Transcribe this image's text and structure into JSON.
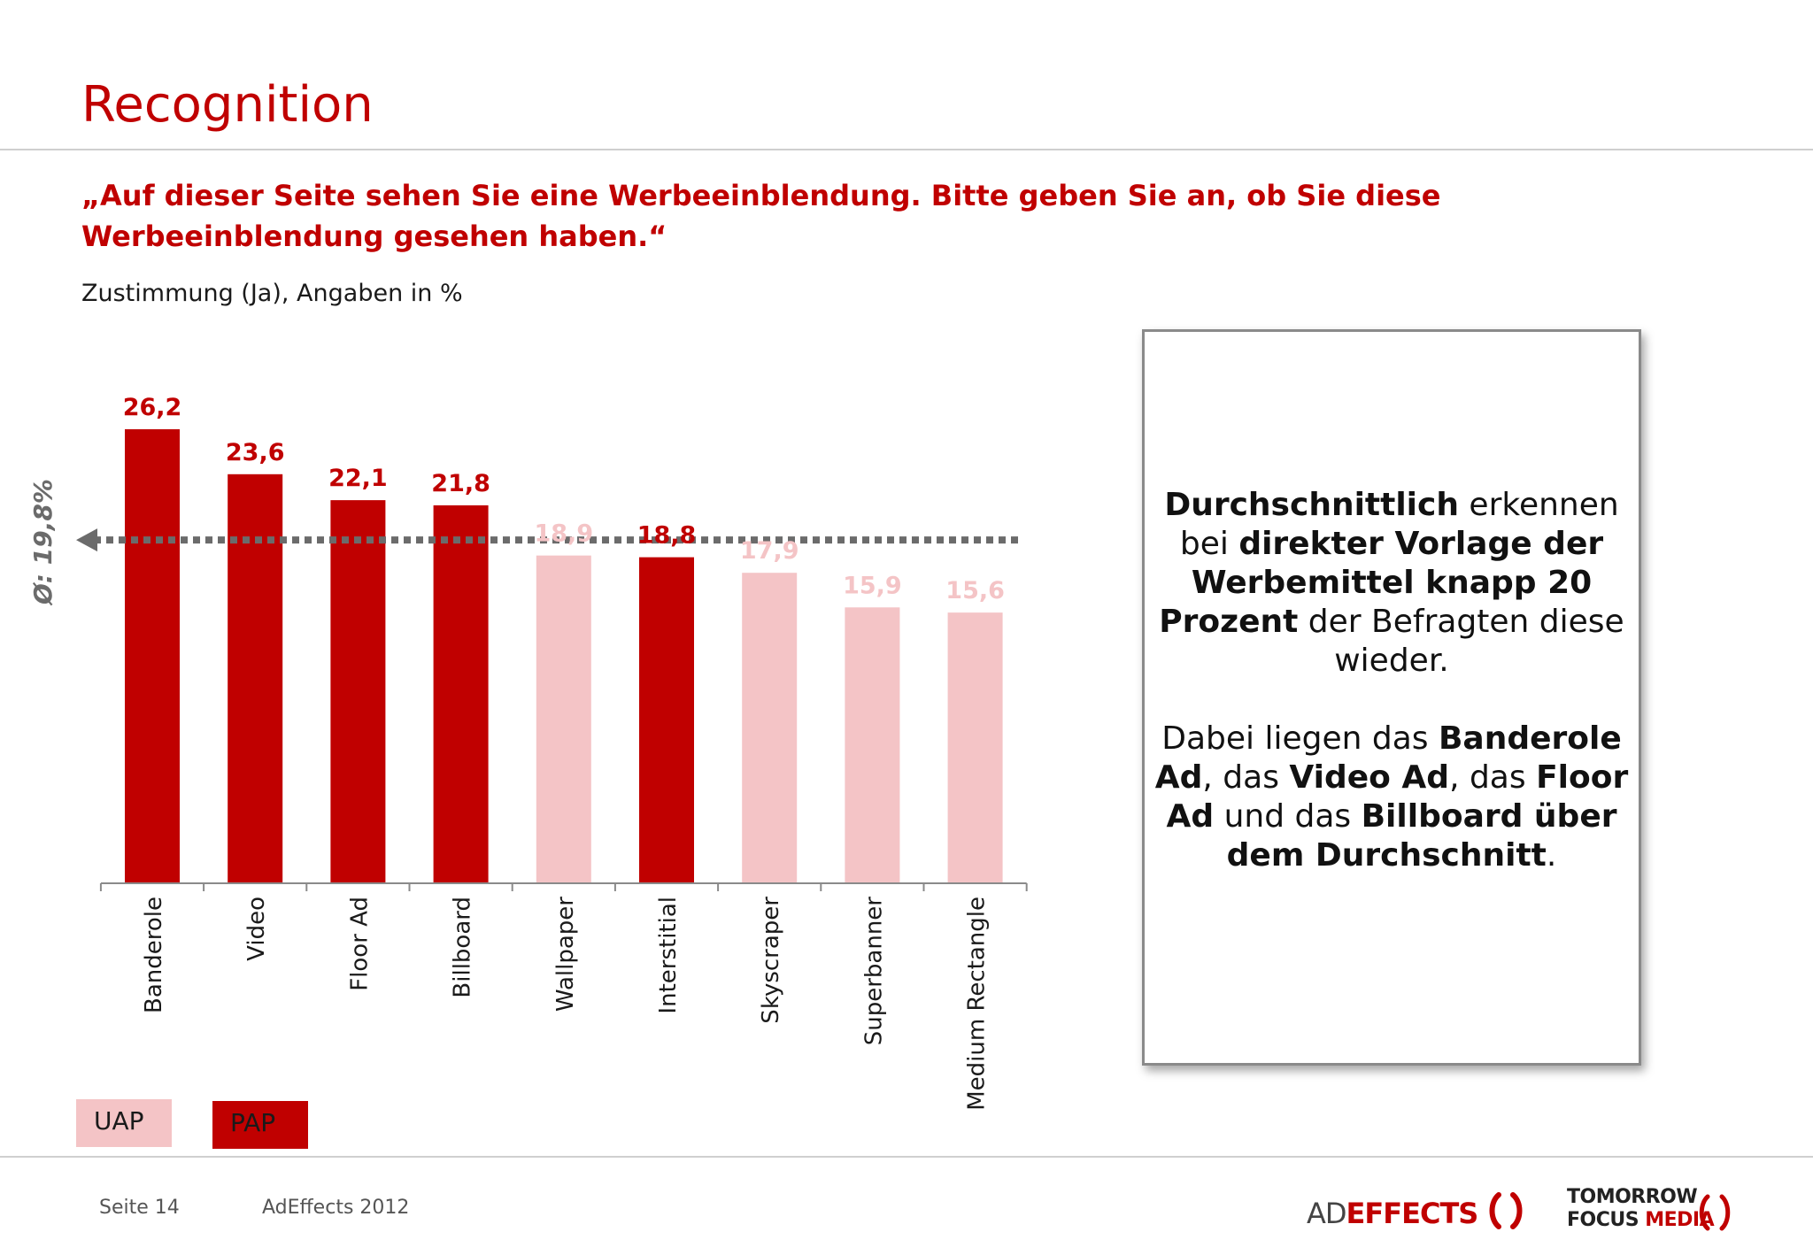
{
  "title": "Recognition",
  "question": "„Auf dieser Seite sehen Sie eine Werbeeinblendung. Bitte geben Sie an, ob Sie diese Werbeeinblendung gesehen haben.“",
  "subtitle": "Zustimmung (Ja), Angaben in %",
  "colors": {
    "accent": "#c00000",
    "uap": "#f4c4c6",
    "pap": "#c00000",
    "average_line": "#6b6b6b"
  },
  "chart_data": {
    "type": "bar",
    "categories": [
      "Banderole",
      "Video",
      "Floor Ad",
      "Billboard",
      "Wallpaper",
      "Interstitial",
      "Skyscraper",
      "Superbanner",
      "Medium Rectangle"
    ],
    "values": [
      26.2,
      23.6,
      22.1,
      21.8,
      18.9,
      18.8,
      17.9,
      15.9,
      15.6
    ],
    "value_labels": [
      "26,2",
      "23,6",
      "22,1",
      "21,8",
      "18,9",
      "18,8",
      "17,9",
      "15,9",
      "15,6"
    ],
    "groups": [
      "PAP",
      "PAP",
      "PAP",
      "PAP",
      "UAP",
      "PAP",
      "UAP",
      "UAP",
      "UAP"
    ],
    "average": 19.8,
    "average_label": "Ø: 19,8%",
    "ylim": [
      0,
      26.2
    ],
    "grid": false,
    "legend": [
      {
        "name": "UAP",
        "color": "#f4c4c6"
      },
      {
        "name": "PAP",
        "color": "#c00000"
      }
    ],
    "legend_position": "bottom-left"
  },
  "callout": {
    "p1": [
      {
        "text": "Durchschnittlich",
        "bold": true
      },
      {
        "text": " erkennen bei ",
        "bold": false
      },
      {
        "text": "direkter Vorlage der Werbemittel knapp 20 Prozent",
        "bold": true
      },
      {
        "text": " der Befragten diese wieder.",
        "bold": false
      }
    ],
    "p2": [
      {
        "text": "Dabei liegen das ",
        "bold": false
      },
      {
        "text": "Banderole Ad",
        "bold": true
      },
      {
        "text": ", das ",
        "bold": false
      },
      {
        "text": "Video Ad",
        "bold": true
      },
      {
        "text": ", das ",
        "bold": false
      },
      {
        "text": "Floor Ad",
        "bold": true
      },
      {
        "text": " und das ",
        "bold": false
      },
      {
        "text": "Billboard über dem Durchschnitt",
        "bold": true
      },
      {
        "text": ".",
        "bold": false
      }
    ]
  },
  "footer": {
    "page": "Seite 14",
    "source": "AdEffects 2012",
    "logo1_ad": "AD",
    "logo1_effects": "EFFECTS",
    "logo2_line1": "TOMORROW",
    "logo2_focus": "FOCUS ",
    "logo2_media": "MEDIA"
  }
}
